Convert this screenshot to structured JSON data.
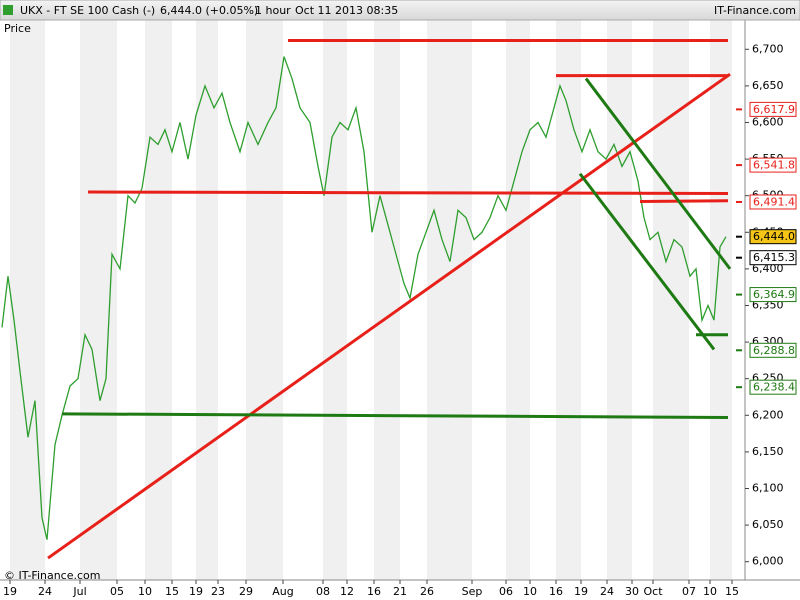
{
  "chart_data": {
    "type": "line",
    "title": "UKX - FT SE 100 Cash (-)",
    "last_price": "6,444.0 (+0.05%)",
    "interval": "1 hour",
    "timestamp": "Oct 11 2013 08:35",
    "source": "IT-Finance.com",
    "copyright": "© IT-Finance.com",
    "y_label": "Price",
    "color": "#2e9e2e",
    "x": [
      2,
      8,
      14,
      20,
      28,
      35,
      42,
      47,
      55,
      62,
      70,
      78,
      85,
      92,
      100,
      106,
      112,
      120,
      128,
      135,
      142,
      150,
      158,
      165,
      172,
      180,
      188,
      196,
      205,
      214,
      222,
      230,
      240,
      248,
      258,
      268,
      276,
      284,
      292,
      300,
      310,
      318,
      324,
      332,
      340,
      348,
      356,
      364,
      372,
      380,
      388,
      396,
      404,
      410,
      418,
      426,
      434,
      442,
      450,
      458,
      466,
      474,
      482,
      490,
      498,
      506,
      514,
      522,
      530,
      538,
      546,
      554,
      560,
      566,
      574,
      582,
      590,
      598,
      606,
      614,
      622,
      630,
      638,
      644,
      650,
      658,
      666,
      674,
      682,
      690,
      696,
      702,
      708,
      714,
      720,
      726
    ],
    "values": [
      6320,
      6390,
      6330,
      6260,
      6170,
      6220,
      6060,
      6030,
      6160,
      6200,
      6240,
      6250,
      6310,
      6290,
      6220,
      6250,
      6420,
      6400,
      6500,
      6490,
      6510,
      6580,
      6570,
      6590,
      6560,
      6600,
      6550,
      6610,
      6650,
      6620,
      6640,
      6600,
      6560,
      6600,
      6570,
      6600,
      6620,
      6690,
      6660,
      6620,
      6600,
      6540,
      6500,
      6580,
      6600,
      6590,
      6620,
      6560,
      6450,
      6500,
      6460,
      6420,
      6380,
      6360,
      6420,
      6450,
      6480,
      6440,
      6410,
      6480,
      6470,
      6440,
      6450,
      6470,
      6500,
      6480,
      6520,
      6560,
      6590,
      6600,
      6580,
      6620,
      6650,
      6630,
      6590,
      6560,
      6590,
      6560,
      6550,
      6570,
      6540,
      6560,
      6520,
      6470,
      6440,
      6450,
      6410,
      6440,
      6430,
      6390,
      6400,
      6330,
      6350,
      6330,
      6430,
      6444
    ],
    "xlim": [
      0,
      745
    ],
    "xticks": [
      {
        "value": 10,
        "label": "19"
      },
      {
        "value": 45,
        "label": "24"
      },
      {
        "value": 80,
        "label": "Jul"
      },
      {
        "value": 117,
        "label": "05"
      },
      {
        "value": 145,
        "label": "10"
      },
      {
        "value": 172,
        "label": "15"
      },
      {
        "value": 196,
        "label": "19"
      },
      {
        "value": 218,
        "label": "23"
      },
      {
        "value": 246,
        "label": "29"
      },
      {
        "value": 283,
        "label": "Aug"
      },
      {
        "value": 323,
        "label": "08"
      },
      {
        "value": 347,
        "label": "12"
      },
      {
        "value": 374,
        "label": "16"
      },
      {
        "value": 400,
        "label": "21"
      },
      {
        "value": 427,
        "label": "26"
      },
      {
        "value": 472,
        "label": "Sep"
      },
      {
        "value": 506,
        "label": "06"
      },
      {
        "value": 530,
        "label": "10"
      },
      {
        "value": 556,
        "label": "16"
      },
      {
        "value": 581,
        "label": "19"
      },
      {
        "value": 607,
        "label": "24"
      },
      {
        "value": 632,
        "label": "30"
      },
      {
        "value": 653,
        "label": "Oct"
      },
      {
        "value": 689,
        "label": "07"
      },
      {
        "value": 710,
        "label": "10"
      },
      {
        "value": 732,
        "label": "15"
      }
    ],
    "ylim": [
      5975,
      6740
    ],
    "yticks": [
      {
        "value": 6000,
        "label": "6,000"
      },
      {
        "value": 6050,
        "label": "6,050"
      },
      {
        "value": 6100,
        "label": "6,100"
      },
      {
        "value": 6150,
        "label": "6,150"
      },
      {
        "value": 6200,
        "label": "6,200"
      },
      {
        "value": 6250,
        "label": "6,250"
      },
      {
        "value": 6300,
        "label": "6,300"
      },
      {
        "value": 6350,
        "label": "6,350"
      },
      {
        "value": 6400,
        "label": "6,400"
      },
      {
        "value": 6450,
        "label": "6,450"
      },
      {
        "value": 6500,
        "label": "6,500"
      },
      {
        "value": 6550,
        "label": "6,550"
      },
      {
        "value": 6600,
        "label": "6,600"
      },
      {
        "value": 6650,
        "label": "6,650"
      },
      {
        "value": 6700,
        "label": "6,700"
      }
    ],
    "trendlines": [
      {
        "x": [
          288,
          728
        ],
        "y": [
          6712,
          6712
        ],
        "color": "#e8201a"
      },
      {
        "x": [
          556,
          728
        ],
        "y": [
          6664,
          6664
        ],
        "color": "#e8201a"
      },
      {
        "x": [
          48,
          730
        ],
        "y": [
          6005,
          6666
        ],
        "color": "#e8201a"
      },
      {
        "x": [
          88,
          728
        ],
        "y": [
          6505,
          6503
        ],
        "color": "#e8201a"
      },
      {
        "x": [
          640,
          728
        ],
        "y": [
          6492,
          6493
        ],
        "color": "#e8201a"
      },
      {
        "x": [
          586,
          730
        ],
        "y": [
          6660,
          6400
        ],
        "color": "#1e7a12"
      },
      {
        "x": [
          580,
          714
        ],
        "y": [
          6530,
          6290
        ],
        "color": "#1e7a12"
      },
      {
        "x": [
          696,
          728
        ],
        "y": [
          6310,
          6310
        ],
        "color": "#1e7a12"
      },
      {
        "x": [
          62,
          728
        ],
        "y": [
          6202,
          6197
        ],
        "color": "#1e7a12"
      }
    ],
    "levels": [
      {
        "value": 6617.9,
        "label": "6,617.9",
        "color": "#e8201a"
      },
      {
        "value": 6541.8,
        "label": "6,541.8",
        "color": "#e8201a"
      },
      {
        "value": 6491.4,
        "label": "6,491.4",
        "color": "#e8201a"
      },
      {
        "value": 6444.0,
        "label": "6,444.0",
        "color": "#000000",
        "fill": "#f5c518"
      },
      {
        "value": 6415.3,
        "label": "6,415.3",
        "color": "#000000"
      },
      {
        "value": 6364.9,
        "label": "6,364.9",
        "color": "#1e7a12"
      },
      {
        "value": 6288.8,
        "label": "6,288.8",
        "color": "#1e7a12"
      },
      {
        "value": 6238.4,
        "label": "6,238.4",
        "color": "#1e7a12"
      }
    ]
  }
}
